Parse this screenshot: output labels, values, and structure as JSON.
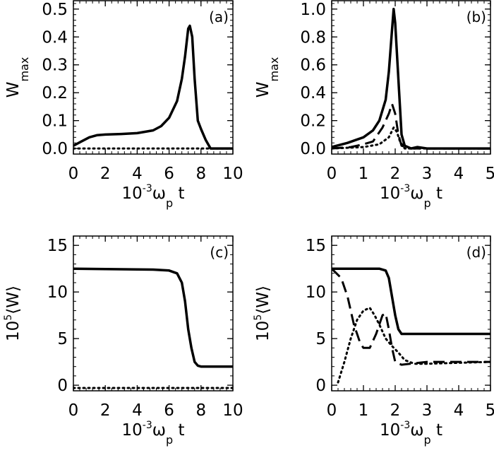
{
  "chart_data": [
    {
      "type": "line",
      "panel_label": "(a)",
      "xlabel": {
        "base": "10",
        "exp": "-3",
        "omega": "ω",
        "sub": "p",
        "t": "t"
      },
      "ylabel": {
        "main": "W",
        "sub": "max"
      },
      "xlim": [
        0,
        10
      ],
      "ylim": [
        -0.02,
        0.53
      ],
      "xticks": [
        0,
        2,
        4,
        6,
        8,
        10
      ],
      "yticks": [
        0.0,
        0.1,
        0.2,
        0.3,
        0.4,
        0.5
      ],
      "ytick_labels": [
        "0.0",
        "0.1",
        "0.2",
        "0.3",
        "0.4",
        "0.5"
      ],
      "series": [
        {
          "style": "solid",
          "x": [
            0,
            0.5,
            1,
            1.5,
            2,
            3,
            4,
            5,
            5.5,
            6,
            6.5,
            6.8,
            7,
            7.2,
            7.3,
            7.45,
            7.6,
            7.8,
            8,
            8.3,
            8.6,
            10
          ],
          "y": [
            0.01,
            0.025,
            0.04,
            0.048,
            0.05,
            0.052,
            0.055,
            0.065,
            0.08,
            0.11,
            0.17,
            0.25,
            0.33,
            0.43,
            0.44,
            0.4,
            0.25,
            0.1,
            0.07,
            0.03,
            0.0,
            0.0
          ]
        },
        {
          "style": "dotted",
          "x": [
            0,
            10
          ],
          "y": [
            0,
            0
          ]
        }
      ]
    },
    {
      "type": "line",
      "panel_label": "(b)",
      "xlabel": {
        "base": "10",
        "exp": "-3",
        "omega": "ω",
        "sub": "p",
        "t": "t"
      },
      "ylabel": {
        "main": "W",
        "sub": "max"
      },
      "xlim": [
        0,
        5
      ],
      "ylim": [
        -0.04,
        1.06
      ],
      "xticks": [
        0,
        1,
        2,
        3,
        4,
        5
      ],
      "yticks": [
        0.0,
        0.2,
        0.4,
        0.6,
        0.8,
        1.0
      ],
      "ytick_labels": [
        "0.0",
        "0.2",
        "0.4",
        "0.6",
        "0.8",
        "1.0"
      ],
      "series": [
        {
          "style": "solid",
          "x": [
            0,
            0.5,
            1,
            1.3,
            1.5,
            1.7,
            1.8,
            1.9,
            1.95,
            2.0,
            2.1,
            2.2,
            2.3,
            2.5,
            2.7,
            3,
            5
          ],
          "y": [
            0.01,
            0.04,
            0.08,
            0.13,
            0.2,
            0.35,
            0.55,
            0.85,
            1.0,
            0.9,
            0.5,
            0.1,
            0.02,
            0.0,
            0.01,
            0.0,
            0.0
          ]
        },
        {
          "style": "dashed",
          "x": [
            0,
            0.6,
            1,
            1.3,
            1.6,
            1.8,
            1.9,
            2.0,
            2.1,
            2.2,
            2.5,
            5
          ],
          "y": [
            0,
            0.01,
            0.03,
            0.05,
            0.15,
            0.25,
            0.32,
            0.25,
            0.1,
            0.02,
            0,
            0
          ]
        },
        {
          "style": "dotted",
          "x": [
            0,
            1,
            1.5,
            1.8,
            1.95,
            2.05,
            2.15,
            2.3,
            5
          ],
          "y": [
            0,
            0.01,
            0.03,
            0.08,
            0.15,
            0.12,
            0.05,
            0,
            0
          ]
        }
      ]
    },
    {
      "type": "line",
      "panel_label": "(c)",
      "xlabel": {
        "base": "10",
        "exp": "-3",
        "omega": "ω",
        "sub": "p",
        "t": "t"
      },
      "ylabel": {
        "base": "10",
        "exp": "5",
        "main": "⟨W⟩"
      },
      "xlim": [
        0,
        10
      ],
      "ylim": [
        -0.6,
        16
      ],
      "xticks": [
        0,
        2,
        4,
        6,
        8,
        10
      ],
      "yticks": [
        0,
        5,
        10,
        15
      ],
      "ytick_labels": [
        "0",
        "5",
        "10",
        "15"
      ],
      "series": [
        {
          "style": "solid",
          "x": [
            0,
            5,
            6,
            6.5,
            6.8,
            7.0,
            7.2,
            7.4,
            7.6,
            7.8,
            8,
            10
          ],
          "y": [
            12.5,
            12.4,
            12.3,
            12.0,
            11,
            9,
            6,
            4,
            2.5,
            2.1,
            2.0,
            2.0
          ]
        },
        {
          "style": "dotted",
          "x": [
            0,
            10
          ],
          "y": [
            -0.3,
            -0.3
          ]
        }
      ]
    },
    {
      "type": "line",
      "panel_label": "(d)",
      "xlabel": {
        "base": "10",
        "exp": "-3",
        "omega": "ω",
        "sub": "p",
        "t": "t"
      },
      "ylabel": {
        "base": "10",
        "exp": "5",
        "main": "⟨W⟩"
      },
      "xlim": [
        0,
        5
      ],
      "ylim": [
        -0.6,
        16
      ],
      "xticks": [
        0,
        1,
        2,
        3,
        4,
        5
      ],
      "yticks": [
        0,
        5,
        10,
        15
      ],
      "ytick_labels": [
        "0",
        "5",
        "10",
        "15"
      ],
      "series": [
        {
          "style": "solid",
          "x": [
            0,
            1.5,
            1.7,
            1.8,
            1.9,
            2.0,
            2.1,
            2.2,
            5
          ],
          "y": [
            12.5,
            12.5,
            12.3,
            11.5,
            9.5,
            7.5,
            6,
            5.5,
            5.5
          ]
        },
        {
          "style": "dashed",
          "x": [
            0,
            0.3,
            0.5,
            0.7,
            0.9,
            1,
            1.2,
            1.4,
            1.6,
            1.7,
            1.8,
            1.9,
            2.0,
            2.2,
            3,
            4,
            5
          ],
          "y": [
            12.5,
            11.5,
            9.5,
            6.5,
            4.5,
            4,
            4,
            5.5,
            7.5,
            7.7,
            6,
            4,
            2.5,
            2.2,
            2.5,
            2.5,
            2.5
          ]
        },
        {
          "style": "dotted",
          "x": [
            0.2,
            0.4,
            0.6,
            0.8,
            1.0,
            1.2,
            1.35,
            1.5,
            1.7,
            1.9,
            2.1,
            2.3,
            2.6,
            3,
            5
          ],
          "y": [
            0.3,
            2.5,
            5,
            7,
            8,
            8.3,
            7.5,
            6.5,
            5,
            4.2,
            3.5,
            2.7,
            2.3,
            2.3,
            2.5
          ]
        }
      ]
    }
  ]
}
